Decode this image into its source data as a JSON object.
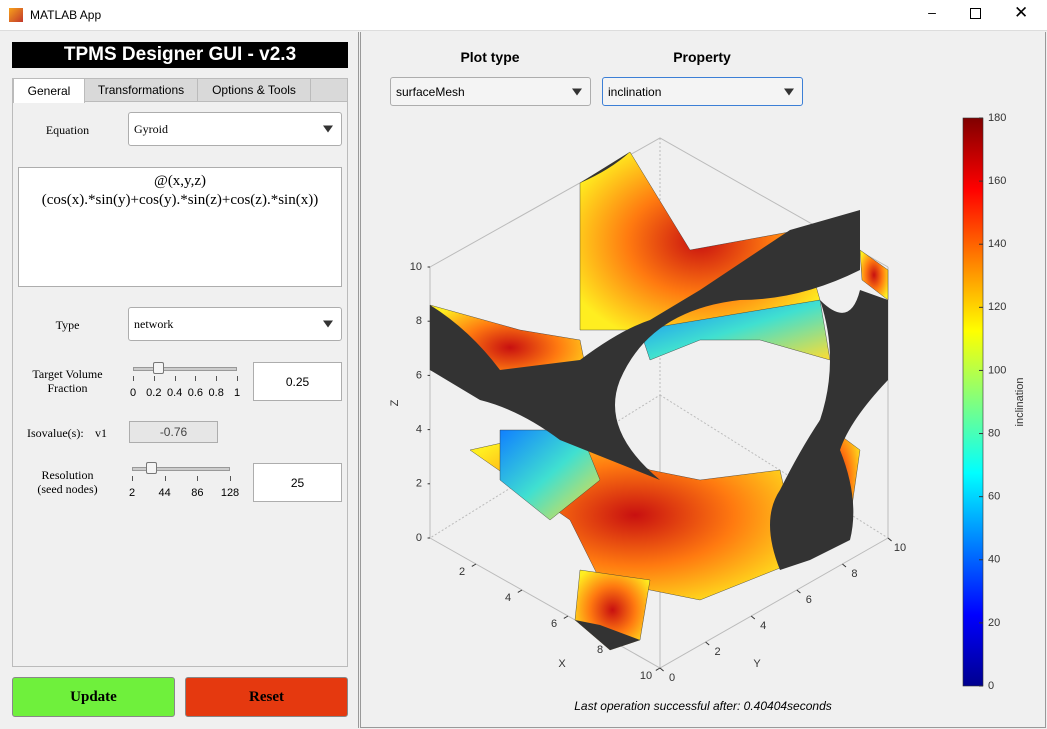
{
  "window": {
    "title": "MATLAB App"
  },
  "app_title": "TPMS Designer GUI - v2.3",
  "tabs": [
    "General",
    "Transformations",
    "Options & Tools"
  ],
  "equation": {
    "label": "Equation",
    "value": "Gyroid",
    "formula": [
      "@(x,y,z)",
      "(cos(x).*sin(y)+cos(y).*sin(z)+cos(z).*sin(x))"
    ]
  },
  "type": {
    "label": "Type",
    "value": "network"
  },
  "target_volume": {
    "label": [
      "Target Volume",
      "Fraction"
    ],
    "ticks": [
      "0",
      "0.2",
      "0.4",
      "0.6",
      "0.8",
      "1"
    ],
    "value": "0.25"
  },
  "isovalue": {
    "label": "Isovalue(s):",
    "name": "v1",
    "value": "-0.76"
  },
  "resolution": {
    "label": [
      "Resolution",
      "(seed nodes)"
    ],
    "ticks": [
      "2",
      "44",
      "86",
      "128"
    ],
    "value": "25"
  },
  "buttons": [
    "Update",
    "Reset"
  ],
  "plot": {
    "plot_type_label": "Plot type",
    "plot_type": "surfaceMesh",
    "property_label": "Property",
    "property": "inclination",
    "x_label": "X",
    "y_label": "Y",
    "z_label": "Z",
    "x_ticks": [
      2,
      4,
      6,
      8,
      10
    ],
    "y_ticks": [
      0,
      2,
      4,
      6,
      8,
      10
    ],
    "z_ticks": [
      0,
      2,
      4,
      6,
      8,
      10
    ],
    "colorbar": {
      "label": "inclination",
      "range": [
        0,
        180
      ],
      "ticks": [
        0,
        20,
        40,
        60,
        80,
        100,
        120,
        140,
        160,
        180
      ]
    }
  },
  "status": "Last operation successful after: 0.40404seconds"
}
